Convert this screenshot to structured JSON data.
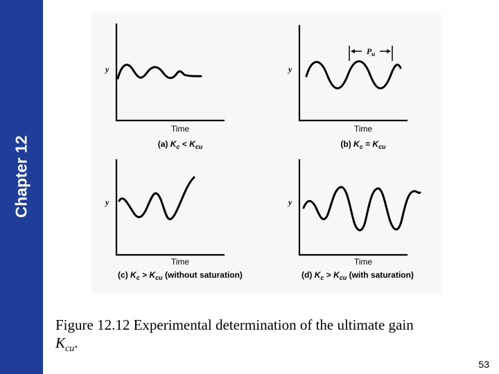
{
  "sidebar": {
    "chapter_label": "Chapter 12"
  },
  "figure": {
    "panels": [
      {
        "id": "a",
        "y_label": "y",
        "x_label": "Time",
        "prefix": "(a) ",
        "relation": " < ",
        "suffix": "",
        "behavior": "damped oscillation"
      },
      {
        "id": "b",
        "y_label": "y",
        "x_label": "Time",
        "prefix": "(b) ",
        "relation": " = ",
        "suffix": "",
        "behavior": "sustained oscillation",
        "period_label": "P",
        "period_sub": "u"
      },
      {
        "id": "c",
        "y_label": "y",
        "x_label": "Time",
        "prefix": "(c) ",
        "relation": " > ",
        "suffix": " (without saturation)",
        "behavior": "growing oscillation"
      },
      {
        "id": "d",
        "y_label": "y",
        "x_label": "Time",
        "prefix": "(d) ",
        "relation": " > ",
        "suffix": " (with saturation)",
        "behavior": "saturated oscillation"
      }
    ],
    "gain_symbol": "K",
    "gain_sub_c": "c",
    "gain_sub_cu": "cu"
  },
  "caption": {
    "text": "Figure 12.12 Experimental determination of the ultimate gain",
    "symbol": "K",
    "symbol_sub": "cu",
    "end": "."
  },
  "page_number": "53"
}
